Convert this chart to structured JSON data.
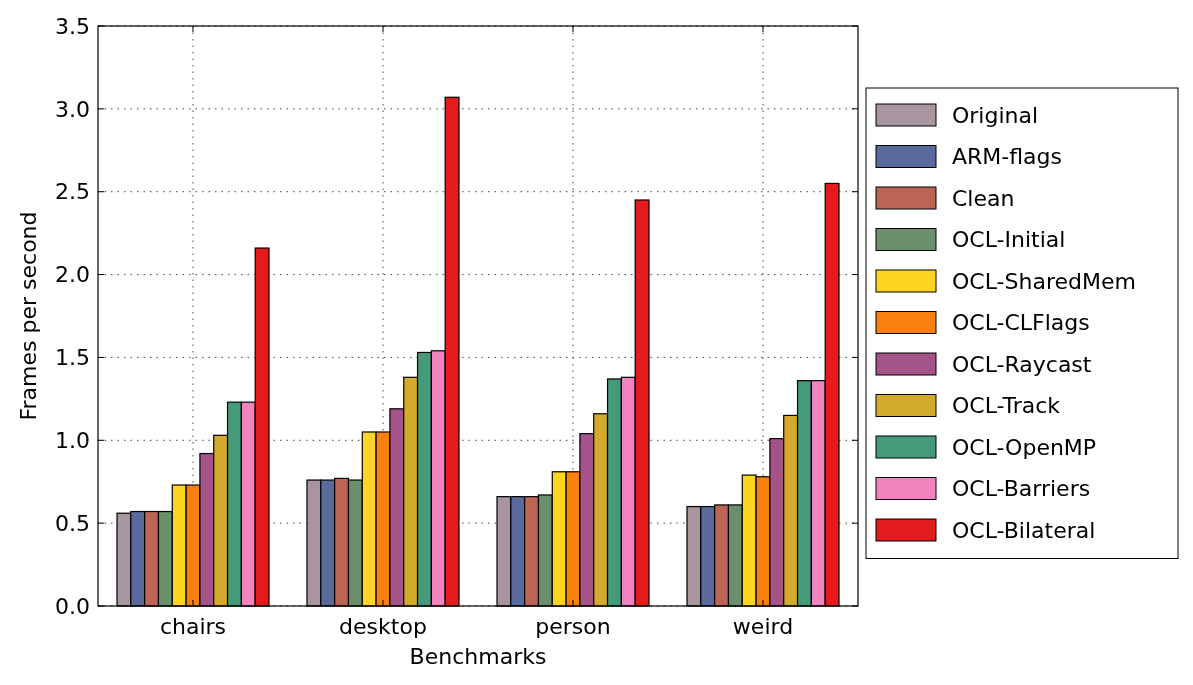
{
  "chart_data": {
    "type": "bar",
    "xlabel": "Benchmarks",
    "ylabel": "Frames per second",
    "categories": [
      "chairs",
      "desktop",
      "person",
      "weird"
    ],
    "series": [
      {
        "name": "Original",
        "color": "#a8959f",
        "values": [
          0.56,
          0.76,
          0.66,
          0.6
        ]
      },
      {
        "name": "ARM-flags",
        "color": "#5a6a9c",
        "values": [
          0.57,
          0.76,
          0.66,
          0.6
        ]
      },
      {
        "name": "Clean",
        "color": "#bc6555",
        "values": [
          0.57,
          0.77,
          0.66,
          0.61
        ]
      },
      {
        "name": "OCL-Initial",
        "color": "#6b8f6b",
        "values": [
          0.57,
          0.76,
          0.67,
          0.61
        ]
      },
      {
        "name": "OCL-SharedMem",
        "color": "#fdd520",
        "values": [
          0.73,
          1.05,
          0.81,
          0.79
        ]
      },
      {
        "name": "OCL-CLFlags",
        "color": "#f97f0f",
        "values": [
          0.73,
          1.05,
          0.81,
          0.78
        ]
      },
      {
        "name": "OCL-Raycast",
        "color": "#a5548a",
        "values": [
          0.92,
          1.19,
          1.04,
          1.01
        ]
      },
      {
        "name": "OCL-Track",
        "color": "#d4aa2c",
        "values": [
          1.03,
          1.38,
          1.16,
          1.15
        ]
      },
      {
        "name": "OCL-OpenMP",
        "color": "#459a7a",
        "values": [
          1.23,
          1.53,
          1.37,
          1.36
        ]
      },
      {
        "name": "OCL-Barriers",
        "color": "#f283bf",
        "values": [
          1.23,
          1.54,
          1.38,
          1.36
        ]
      },
      {
        "name": "OCL-Bilateral",
        "color": "#e41a1c",
        "values": [
          2.16,
          3.07,
          2.45,
          2.55
        ]
      }
    ],
    "ylim": [
      0,
      3.5
    ],
    "yticks": [
      {
        "value": 0,
        "label": "0.0"
      },
      {
        "value": 0.5,
        "label": "0.5"
      },
      {
        "value": 1,
        "label": "1.0"
      },
      {
        "value": 1.5,
        "label": "1.5"
      },
      {
        "value": 2,
        "label": "2.0"
      },
      {
        "value": 2.5,
        "label": "2.5"
      },
      {
        "value": 3,
        "label": "3.0"
      },
      {
        "value": 3.5,
        "label": "3.5"
      }
    ],
    "grid": true,
    "legend": "right"
  }
}
